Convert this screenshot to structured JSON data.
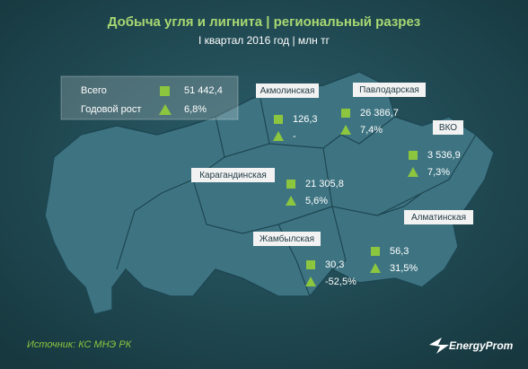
{
  "title": "Добыча угля и лигнита | региональный разрез",
  "subtitle": "I квартал 2016 год | млн тг",
  "summary": {
    "total_label": "Всего",
    "total_value": "51 442,4",
    "growth_label": "Годовой рост",
    "growth_value": "6,8%"
  },
  "regions": [
    {
      "name": "Акмолинская",
      "value": "126,3",
      "growth": "-"
    },
    {
      "name": "Павлодарская",
      "value": "26 386,7",
      "growth": "7,4%"
    },
    {
      "name": "ВКО",
      "value": "3 536,9",
      "growth": "7,3%"
    },
    {
      "name": "Карагандинская",
      "value": "21 305,8",
      "growth": "5,6%"
    },
    {
      "name": "Жамбылская",
      "value": "30,3",
      "growth": "-52,5%"
    },
    {
      "name": "Алматинская",
      "value": "56,3",
      "growth": "31,5%"
    }
  ],
  "source": "Источник: КС МНЭ РК",
  "brand": "EnergyProm"
}
